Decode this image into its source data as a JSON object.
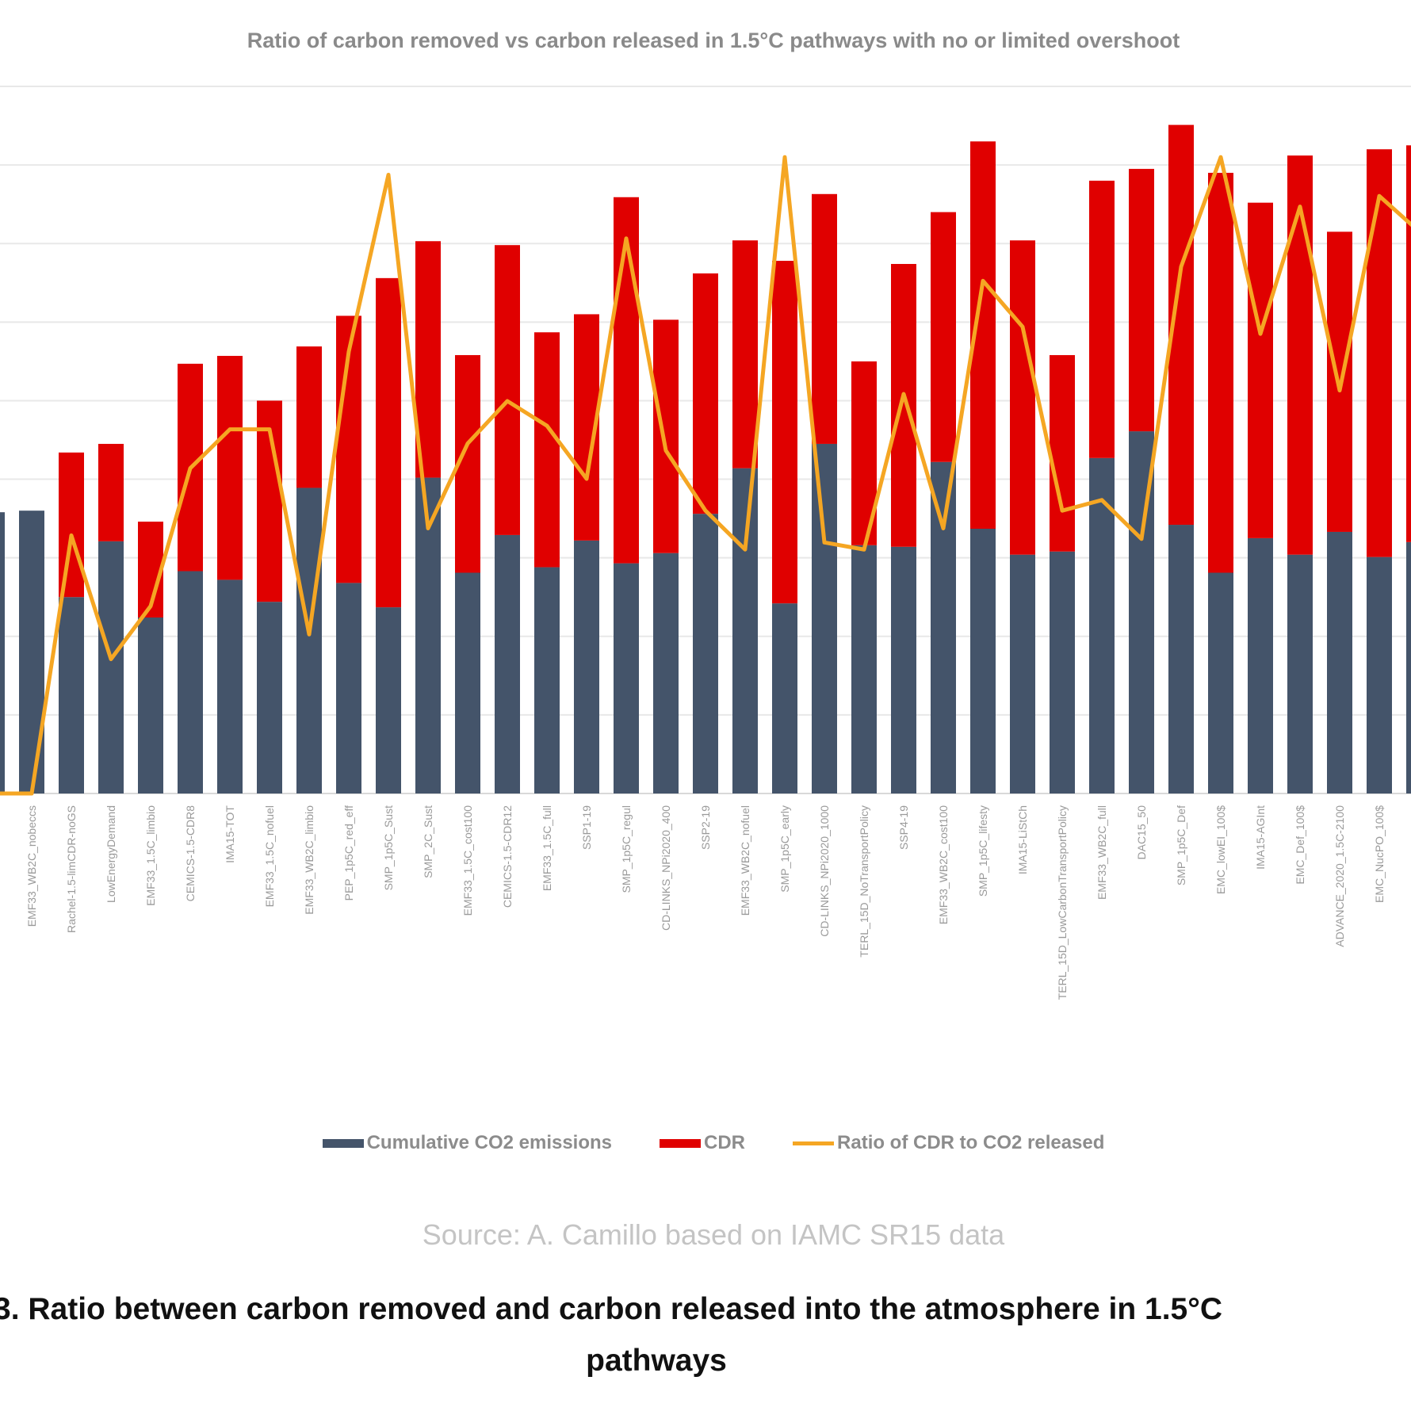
{
  "chart_data": {
    "type": "bar",
    "stacked": true,
    "title": "Ratio of carbon removed vs carbon released in 1.5°C pathways with no or limited overshoot",
    "xlabel": "",
    "ylabel": "",
    "ylim": [
      0,
      900
    ],
    "y2lim": [
      0,
      2.0
    ],
    "grid": true,
    "legend_position": "bottom",
    "categories": [
      "",
      "EMF33_WB2C_nobeccs",
      "Rachel-1.5-limCDR-noGS",
      "LowEnergyDemand",
      "EMF33_1.5C_limbio",
      "CEMICS-1.5-CDR8",
      "IMA15-TOT",
      "EMF33_1.5C_nofuel",
      "EMF33_WB2C_limbio",
      "PEP_1p5C_red_eff",
      "SMP_1p5C_Sust",
      "SMP_2C_Sust",
      "EMF33_1.5C_cost100",
      "CEMICS-1.5-CDR12",
      "EMF33_1.5C_full",
      "SSP1-19",
      "SMP_1p5C_regul",
      "CD-LINKS_NPi2020_400",
      "SSP2-19",
      "EMF33_WB2C_nofuel",
      "SMP_1p5C_early",
      "CD-LINKS_NPi2020_1000",
      "TERL_15D_NoTransportPolicy",
      "SSP4-19",
      "EMF33_WB2C_cost100",
      "SMP_1p5C_lifesty",
      "IMA15-LiStCh",
      "TERL_15D_LowCarbonTransportPolicy",
      "EMF33_WB2C_full",
      "DAC15_50",
      "SMP_1p5C_Def",
      "EMC_lowEI_100$",
      "IMA15-AGInt",
      "EMC_Def_100$",
      "ADVANCE_2020_1.5C-2100",
      "EMC_NucPO_100$",
      ""
    ],
    "series": [
      {
        "name": "Cumulative CO2 emissions",
        "kind": "bar",
        "color": "#44546a",
        "values": [
          358,
          360,
          250,
          321,
          224,
          283,
          272,
          244,
          389,
          268,
          237,
          402,
          281,
          329,
          288,
          322,
          293,
          306,
          356,
          414,
          242,
          445,
          316,
          314,
          422,
          337,
          304,
          308,
          427,
          461,
          342,
          281,
          325,
          304,
          333,
          301,
          320
        ]
      },
      {
        "name": "CDR",
        "kind": "bar",
        "color": "#e00000",
        "values": [
          0,
          0,
          184,
          124,
          122,
          264,
          285,
          256,
          180,
          340,
          419,
          301,
          277,
          369,
          299,
          288,
          466,
          297,
          306,
          290,
          436,
          318,
          234,
          360,
          318,
          493,
          400,
          250,
          353,
          334,
          509,
          509,
          427,
          508,
          382,
          519,
          505
        ]
      },
      {
        "name": "Ratio of CDR to CO2 released",
        "kind": "line",
        "axis": "secondary",
        "color": "#f5a623",
        "values": [
          0,
          0,
          0.73,
          0.38,
          0.53,
          0.92,
          1.03,
          1.03,
          0.45,
          1.25,
          1.75,
          0.75,
          0.99,
          1.11,
          1.04,
          0.89,
          1.57,
          0.97,
          0.8,
          0.69,
          1.8,
          0.71,
          0.69,
          1.13,
          0.75,
          1.45,
          1.32,
          0.8,
          0.83,
          0.72,
          1.49,
          1.8,
          1.3,
          1.66,
          1.14,
          1.69,
          1.59
        ]
      }
    ]
  },
  "source": "Source: A. Camillo  based on IAMC SR15 data",
  "caption_line1": "3. Ratio between carbon removed and carbon released into the atmosphere in 1.5°C",
  "caption_line2": "pathways"
}
